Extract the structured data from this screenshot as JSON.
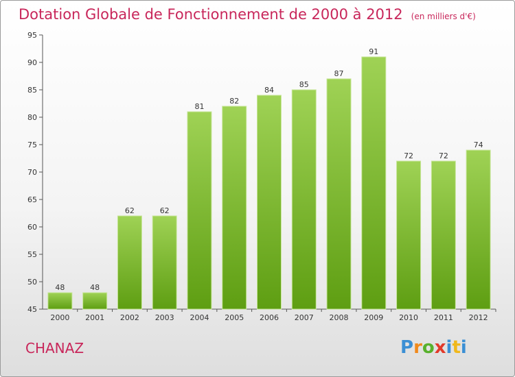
{
  "title": "Dotation Globale de Fonctionnement de 2000 à 2012",
  "unit": "(en milliers d'€)",
  "commune": "CHANAZ",
  "logo": "Proxiti",
  "colors": {
    "accent": "#c8265a",
    "bar_top": "#9fd255",
    "bar_bottom": "#5e9e12"
  },
  "chart_data": {
    "type": "bar",
    "title": "Dotation Globale de Fonctionnement de 2000 à 2012",
    "subtitle": "(en milliers d'€)",
    "categories": [
      "2000",
      "2001",
      "2002",
      "2003",
      "2004",
      "2005",
      "2006",
      "2007",
      "2008",
      "2009",
      "2010",
      "2011",
      "2012"
    ],
    "values": [
      48,
      48,
      62,
      62,
      81,
      82,
      84,
      85,
      87,
      91,
      72,
      72,
      74
    ],
    "ylim": [
      45,
      95
    ],
    "yticks": [
      45,
      50,
      55,
      60,
      65,
      70,
      75,
      80,
      85,
      90,
      95
    ],
    "grid": false,
    "xlabel": "",
    "ylabel": ""
  }
}
